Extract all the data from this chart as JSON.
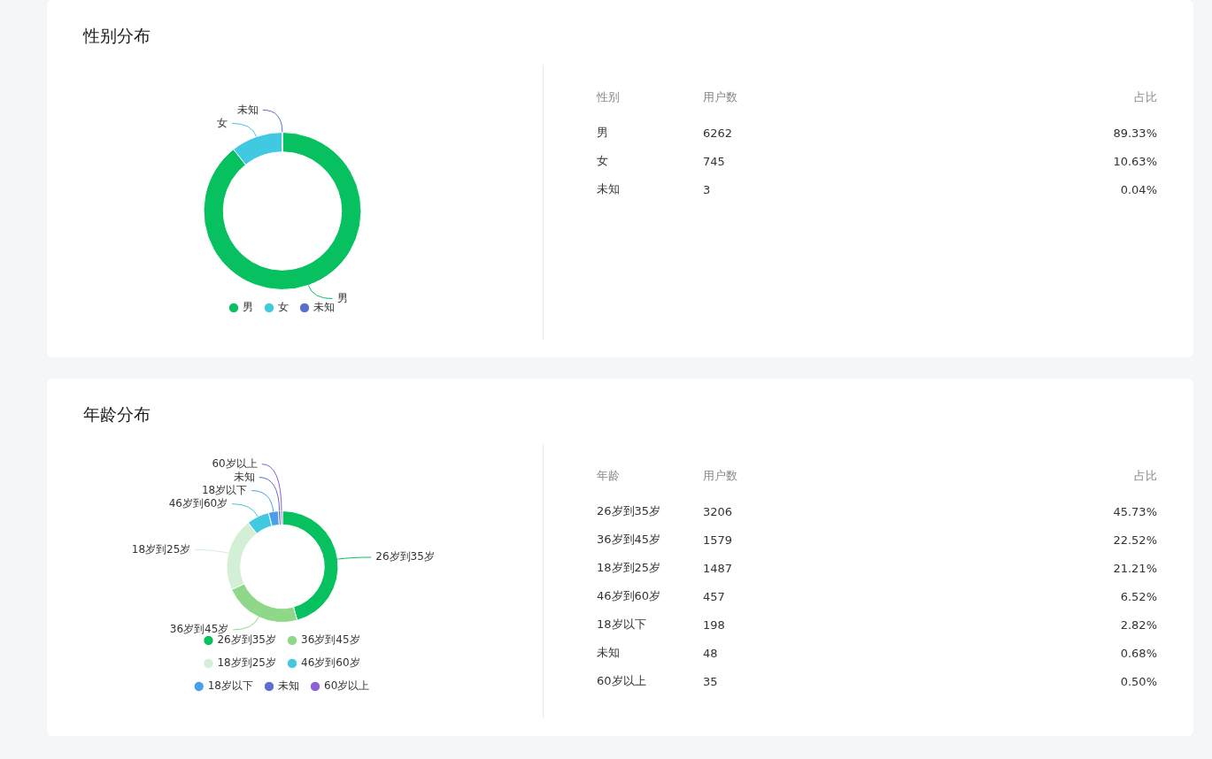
{
  "chart_data": [
    {
      "type": "donut",
      "title": "性别分布",
      "categories": [
        "男",
        "女",
        "未知"
      ],
      "values": [
        89.33,
        10.63,
        0.04
      ],
      "colors": [
        "#07c160",
        "#40c9e0",
        "#5b6fcf"
      ],
      "legend": "bottom"
    },
    {
      "type": "other",
      "annotations": [
        "性别",
        "用户数",
        "占比",
        "男",
        "6262",
        "89.33%",
        "女",
        "745",
        "10.63%",
        "未知",
        "3",
        "0.04%"
      ]
    },
    {
      "type": "donut",
      "title": "年龄分布",
      "categories": [
        "26岁到35岁",
        "36岁到45岁",
        "18岁到25岁",
        "46岁到60岁",
        "18岁以下",
        "未知",
        "60岁以上"
      ],
      "values": [
        45.73,
        22.52,
        21.21,
        6.52,
        2.82,
        0.68,
        0.5
      ],
      "colors": [
        "#07c160",
        "#8fd88a",
        "#d3efd5",
        "#40c9e0",
        "#4a9fea",
        "#5b6fcf",
        "#8e5fd6"
      ],
      "legend": "bottom"
    },
    {
      "type": "other",
      "annotations": [
        "年龄",
        "用户数",
        "占比",
        "26岁到35岁",
        "3206",
        "45.73%",
        "36岁到45岁",
        "1579",
        "22.52%",
        "18岁到25岁",
        "1487",
        "21.21%",
        "46岁到60岁",
        "457",
        "6.52%",
        "18岁以下",
        "198",
        "2.82%",
        "未知",
        "48",
        "0.68%",
        "60岁以上",
        "35",
        "0.50%"
      ]
    }
  ]
}
